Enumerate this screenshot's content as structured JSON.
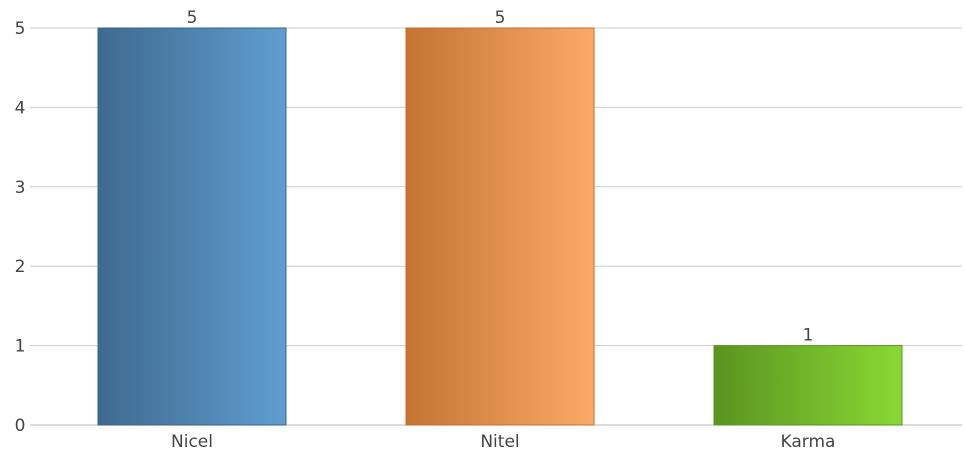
{
  "chart_data": {
    "type": "bar",
    "categories": [
      "Nicel",
      "Nitel",
      "Karma"
    ],
    "values": [
      5,
      5,
      1
    ],
    "data_labels": [
      "5",
      "5",
      "1"
    ],
    "y_ticks": [
      "0",
      "1",
      "2",
      "3",
      "4",
      "5"
    ],
    "ylim": [
      0,
      5
    ],
    "grid": true,
    "title": "",
    "xlabel": "",
    "ylabel": "",
    "colors": [
      {
        "dark": "#3f6a8f",
        "light": "#5f9dd0",
        "stroke": "#3a6388"
      },
      {
        "dark": "#c47432",
        "light": "#fbaa68",
        "stroke": "#c07030"
      },
      {
        "dark": "#5a9420",
        "light": "#8ad834",
        "stroke": "#5a941f"
      }
    ]
  }
}
